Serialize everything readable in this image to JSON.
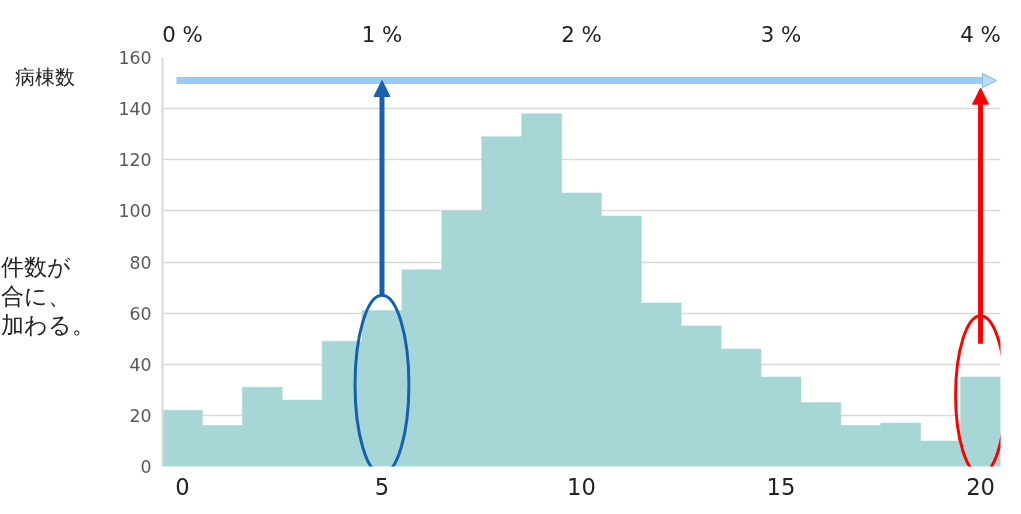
{
  "chart_data": {
    "type": "histogram",
    "ylabel": "病棟数",
    "bins": [
      -0.5,
      0.5,
      1.5,
      2.5,
      3.5,
      4.5,
      5.5,
      6.5,
      7.5,
      8.5,
      9.5,
      10.5,
      11.5,
      12.5,
      13.5,
      14.5,
      15.5,
      16.5,
      17.5,
      18.5,
      19.5,
      20.5
    ],
    "values": [
      22,
      16,
      31,
      26,
      49,
      61,
      77,
      100,
      129,
      138,
      107,
      98,
      64,
      55,
      46,
      35,
      25,
      16,
      17,
      10,
      35
    ],
    "color": "#a6d6d6",
    "xlim": [
      -0.5,
      20.5
    ],
    "xticks": [
      0,
      5,
      10,
      15,
      20
    ],
    "ylim": [
      0,
      160
    ],
    "yticks": [
      0,
      20,
      40,
      60,
      80,
      100,
      120,
      140,
      160
    ],
    "x2lim": [
      -0.1,
      4.1
    ],
    "x2ticks": [
      {
        "value": 0,
        "label": "0 %"
      },
      {
        "value": 1,
        "label": "1 %"
      },
      {
        "value": 2,
        "label": "2 %"
      },
      {
        "value": 3,
        "label": "3 %"
      },
      {
        "value": 4,
        "label": "4 %"
      }
    ],
    "grid": "y",
    "annotations": [
      "件数が",
      "合に、",
      "加わる。"
    ]
  }
}
